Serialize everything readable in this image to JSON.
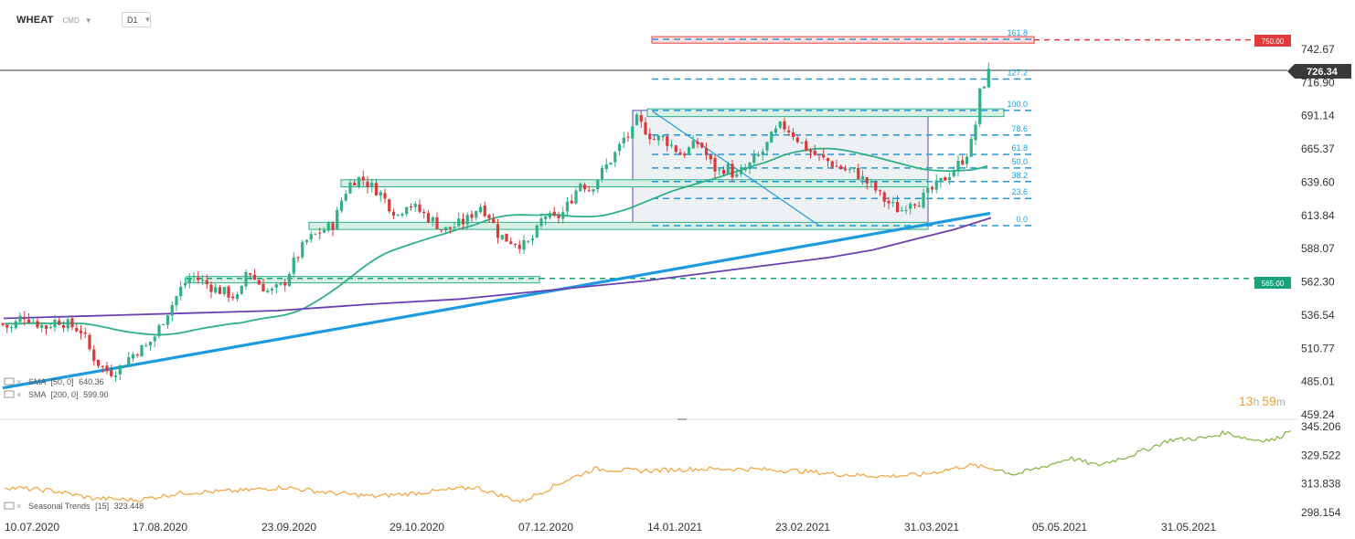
{
  "header": {
    "symbol": "WHEAT",
    "instrument_type": "CMD",
    "timeframe": "D1"
  },
  "countdown": {
    "hours": "13",
    "h": "h",
    "minutes": "59",
    "m": "m"
  },
  "colors": {
    "bull": "#2fb085",
    "bear": "#d63a3a",
    "sma50": "#2fb085",
    "sma200": "#6a3fb2",
    "trend": "#1d9be0",
    "fib": "#1d9be0",
    "seasonal_low": "#f4a23c",
    "seasonal_high": "#7fb53c",
    "price_tag": "#3a3a3a",
    "resistance": "#e23b3b",
    "support": "#1aa37a"
  },
  "chart_data": [
    {
      "type": "candlestick",
      "symbol": "WHEAT",
      "timeframe": "D1",
      "current_price": "726.34",
      "y_ticks": [
        "742.67",
        "716.90",
        "691.14",
        "665.37",
        "639.60",
        "613.84",
        "588.07",
        "562.30",
        "536.54",
        "510.77",
        "485.01",
        "459.24"
      ],
      "ylim": [
        459.24,
        742.67
      ],
      "x_ticks": [
        "10.07.2020",
        "17.08.2020",
        "23.09.2020",
        "29.10.2020",
        "07.12.2020",
        "14.01.2021",
        "23.02.2021",
        "31.03.2021",
        "05.05.2021",
        "31.05.2021"
      ],
      "series": [
        {
          "name": "SMA",
          "params": "[50, 0]",
          "last_value": "640.36"
        },
        {
          "name": "SMA",
          "params": "[200, 0]",
          "last_value": "599.90"
        }
      ],
      "levels": [
        {
          "label": "750.00",
          "value": 750.0,
          "kind": "resistance"
        },
        {
          "label": "565.00",
          "value": 565.0,
          "kind": "support"
        }
      ],
      "fibonacci": [
        {
          "label": "161.8",
          "value": 750.5
        },
        {
          "label": "127.2",
          "value": 719.6
        },
        {
          "label": "100.0",
          "value": 695.3
        },
        {
          "label": "78.6",
          "value": 676.2
        },
        {
          "label": "61.8",
          "value": 661.2
        },
        {
          "label": "50.0",
          "value": 650.6
        },
        {
          "label": "38.2",
          "value": 640.1
        },
        {
          "label": "23.6",
          "value": 627.0
        },
        {
          "label": "0.0",
          "value": 605.9
        }
      ],
      "close_path": [
        [
          0,
          530
        ],
        [
          12,
          526
        ],
        [
          25,
          537
        ],
        [
          38,
          531
        ],
        [
          50,
          527
        ],
        [
          62,
          533
        ],
        [
          75,
          529
        ],
        [
          90,
          524
        ],
        [
          100,
          506
        ],
        [
          110,
          497
        ],
        [
          120,
          492
        ],
        [
          130,
          495
        ],
        [
          140,
          503
        ],
        [
          150,
          509
        ],
        [
          160,
          512
        ],
        [
          170,
          521
        ],
        [
          180,
          535
        ],
        [
          190,
          547
        ],
        [
          200,
          560
        ],
        [
          210,
          567
        ],
        [
          220,
          563
        ],
        [
          235,
          557
        ],
        [
          250,
          553
        ],
        [
          262,
          549
        ],
        [
          270,
          573
        ],
        [
          280,
          563
        ],
        [
          295,
          554
        ],
        [
          310,
          560
        ],
        [
          320,
          576
        ],
        [
          335,
          594
        ],
        [
          350,
          601
        ],
        [
          365,
          607
        ],
        [
          375,
          629
        ],
        [
          385,
          641
        ],
        [
          395,
          643
        ],
        [
          405,
          637
        ],
        [
          415,
          632
        ],
        [
          425,
          622
        ],
        [
          435,
          614
        ],
        [
          445,
          624
        ],
        [
          455,
          619
        ],
        [
          465,
          614
        ],
        [
          475,
          609
        ],
        [
          485,
          602
        ],
        [
          495,
          605
        ],
        [
          510,
          610
        ],
        [
          525,
          622
        ],
        [
          535,
          614
        ],
        [
          545,
          599
        ],
        [
          555,
          595
        ],
        [
          565,
          593
        ],
        [
          575,
          590
        ],
        [
          585,
          598
        ],
        [
          595,
          615
        ],
        [
          605,
          610
        ],
        [
          615,
          615
        ],
        [
          625,
          627
        ],
        [
          635,
          640
        ],
        [
          645,
          634
        ],
        [
          655,
          644
        ],
        [
          665,
          654
        ],
        [
          675,
          664
        ],
        [
          685,
          677
        ],
        [
          690,
          673
        ],
        [
          695,
          689
        ],
        [
          705,
          681
        ],
        [
          715,
          673
        ],
        [
          725,
          674
        ],
        [
          735,
          668
        ],
        [
          745,
          661
        ],
        [
          755,
          666
        ],
        [
          765,
          671
        ],
        [
          775,
          657
        ],
        [
          785,
          647
        ],
        [
          795,
          652
        ],
        [
          805,
          643
        ],
        [
          815,
          649
        ],
        [
          825,
          657
        ],
        [
          835,
          664
        ],
        [
          845,
          676
        ],
        [
          855,
          684
        ],
        [
          865,
          679
        ],
        [
          875,
          671
        ],
        [
          885,
          664
        ],
        [
          895,
          659
        ],
        [
          905,
          656
        ],
        [
          915,
          652
        ],
        [
          925,
          649
        ],
        [
          935,
          648
        ],
        [
          945,
          641
        ],
        [
          955,
          636
        ],
        [
          965,
          627
        ],
        [
          975,
          622
        ],
        [
          985,
          617
        ],
        [
          995,
          626
        ],
        [
          1005,
          625
        ],
        [
          1015,
          631
        ],
        [
          1025,
          637
        ],
        [
          1035,
          644
        ],
        [
          1045,
          651
        ],
        [
          1055,
          659
        ],
        [
          1062,
          669
        ],
        [
          1068,
          688
        ],
        [
          1072,
          710
        ],
        [
          1076,
          716
        ],
        [
          1082,
          726
        ]
      ]
    },
    {
      "type": "line",
      "name": "Seasonal Trends",
      "params": "[15]",
      "last_value": "323.448",
      "y_ticks": [
        "345.206",
        "329.522",
        "313.838",
        "298.154"
      ],
      "ylim": [
        298.154,
        345.206
      ]
    }
  ]
}
